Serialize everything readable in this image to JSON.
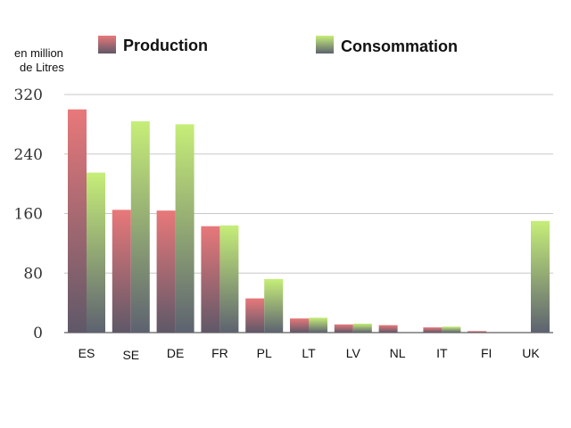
{
  "chart_data": {
    "type": "bar",
    "unit_label_line1": "en million",
    "unit_label_line2": "de Litres",
    "categories": [
      "ES",
      "SE",
      "DE",
      "FR",
      "PL",
      "LT",
      "LV",
      "NL",
      "IT",
      "FI",
      "UK"
    ],
    "series": [
      {
        "name": "Production",
        "values": [
          300,
          165,
          164,
          143,
          46,
          19,
          11,
          10,
          7,
          2,
          0
        ]
      },
      {
        "name": "Consommation",
        "values": [
          215,
          284,
          280,
          144,
          72,
          20,
          12,
          0,
          8,
          0,
          150
        ]
      }
    ],
    "yticks": [
      0,
      80,
      160,
      240,
      320
    ],
    "ylim": [
      0,
      320
    ],
    "grid": true,
    "legend_position": "top",
    "colors": {
      "production_top": "#e8787a",
      "production_bottom": "#5f5868",
      "consommation_top": "#c6ee78",
      "consommation_bottom": "#5d6270",
      "grid": "#c8c8c8",
      "axis": "#9a9a9a"
    }
  }
}
